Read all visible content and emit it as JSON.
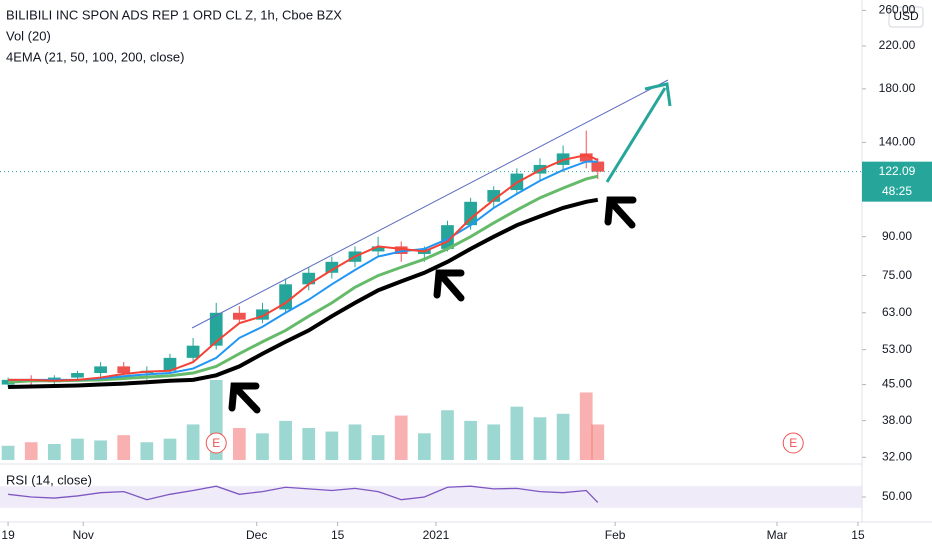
{
  "chart_data": {
    "type": "candlestick",
    "title": "BILIBILI INC SPON ADS REP 1 ORD CL Z, 1h, Cboe BZX",
    "indicator_labels": [
      "Vol (20)",
      "4EMA (21, 50, 100, 200, close)"
    ],
    "currency": "USD",
    "log_scale": true,
    "x": [
      0,
      4,
      8,
      12,
      16,
      20,
      24,
      28,
      32,
      36,
      40,
      44,
      48,
      52,
      56,
      60,
      64,
      68,
      72,
      76,
      80,
      84,
      88,
      92,
      96,
      100,
      102
    ],
    "open": [
      45,
      46,
      45.5,
      46.5,
      47.5,
      49,
      47.5,
      48,
      51,
      54,
      63,
      61,
      64,
      72,
      76,
      80,
      84,
      86,
      83,
      85,
      95,
      106,
      112,
      121,
      126,
      133,
      128
    ],
    "high": [
      46.5,
      47,
      47,
      48,
      50,
      50,
      49,
      52,
      56,
      66,
      65,
      66,
      74,
      78,
      82,
      86,
      90,
      88,
      86,
      97,
      108,
      114,
      124,
      130,
      138,
      148,
      130
    ],
    "low": [
      44.5,
      45,
      44.8,
      46,
      46.5,
      47,
      46,
      47.5,
      50,
      53,
      60,
      60,
      63,
      70,
      74,
      78,
      82,
      80,
      80,
      84,
      93,
      103,
      110,
      117,
      122,
      124,
      118
    ],
    "close": [
      46,
      45.5,
      46.5,
      47.5,
      49,
      47.5,
      48,
      51,
      54,
      63,
      61,
      64,
      72,
      76,
      80,
      84,
      86,
      83,
      85,
      95,
      106,
      112,
      121,
      126,
      133,
      128,
      122.09
    ],
    "up_color": "#26a69a",
    "down_color": "#ef5350",
    "ema_series": [
      {
        "color": "#000000",
        "values": [
          44.5,
          44.6,
          44.7,
          44.8,
          45,
          45.2,
          45.5,
          45.8,
          46,
          47,
          49,
          52,
          55,
          58,
          62,
          66,
          70,
          73,
          76,
          80,
          85,
          90,
          95,
          99,
          103,
          106,
          107
        ]
      },
      {
        "color": "#66bb6a",
        "values": [
          45.5,
          45.8,
          45.8,
          45.9,
          46,
          46.3,
          46.6,
          46.9,
          47.5,
          49,
          52,
          55,
          58,
          62,
          66,
          71,
          75,
          78,
          81,
          85,
          90,
          96,
          102,
          108,
          113,
          118,
          119.5
        ]
      },
      {
        "color": "#2196f3",
        "values": [
          46,
          46,
          46,
          46,
          46.3,
          46.8,
          47.2,
          47.5,
          48.5,
          51,
          56,
          59,
          63,
          67,
          72,
          77,
          82,
          84,
          85,
          89,
          95,
          103,
          110,
          117,
          123,
          128,
          128
        ]
      },
      {
        "color": "#f44336",
        "values": [
          46,
          46,
          45.8,
          46,
          46.5,
          47.3,
          47.8,
          48,
          50,
          55,
          60,
          62,
          66,
          72,
          77,
          82,
          86,
          85,
          84,
          88,
          98,
          107,
          116,
          123,
          129,
          132,
          129
        ]
      }
    ],
    "volume": [
      8,
      10,
      9,
      12,
      11,
      14,
      10,
      12,
      20,
      45,
      18,
      15,
      22,
      18,
      16,
      20,
      14,
      25,
      15,
      28,
      22,
      20,
      30,
      24,
      26,
      38,
      20
    ],
    "ylim": [
      31.3,
      273
    ],
    "yticks": [
      {
        "value": 260,
        "label": "260.00"
      },
      {
        "value": 220,
        "label": "220.00"
      },
      {
        "value": 180,
        "label": "180.00"
      },
      {
        "value": 140,
        "label": "140.00"
      },
      {
        "value": 90,
        "label": "90.00"
      },
      {
        "value": 75,
        "label": "75.00"
      },
      {
        "value": 63,
        "label": "63.00"
      },
      {
        "value": 53,
        "label": "53.00"
      },
      {
        "value": 45,
        "label": "45.00"
      },
      {
        "value": 38,
        "label": "38.00"
      },
      {
        "value": 32,
        "label": "32.00"
      }
    ],
    "last_price": 122.09,
    "countdown": "48:25",
    "xlim": [
      -1.4,
      147.7
    ],
    "xticks": [
      {
        "value": 0,
        "label": "19"
      },
      {
        "value": 13,
        "label": "Nov"
      },
      {
        "value": 43,
        "label": "Dec"
      },
      {
        "value": 57,
        "label": "15"
      },
      {
        "value": 74,
        "label": "2021"
      },
      {
        "value": 105,
        "label": "Feb"
      },
      {
        "value": 133,
        "label": "Mar"
      },
      {
        "value": 147,
        "label": "15"
      }
    ],
    "earnings": {
      "label": "E",
      "x": [
        36,
        135.8
      ]
    },
    "rsi": {
      "label": "RSI (14, close)",
      "color": "#7e57c2",
      "values": [
        55,
        50,
        48,
        52,
        58,
        60,
        45,
        55,
        62,
        70,
        55,
        60,
        68,
        65,
        62,
        66,
        60,
        45,
        50,
        68,
        70,
        65,
        66,
        60,
        58,
        62,
        40
      ],
      "ylim": [
        0,
        100
      ],
      "band": [
        30,
        70
      ],
      "yticks": [
        {
          "value": 50,
          "label": "50.00"
        }
      ]
    }
  }
}
